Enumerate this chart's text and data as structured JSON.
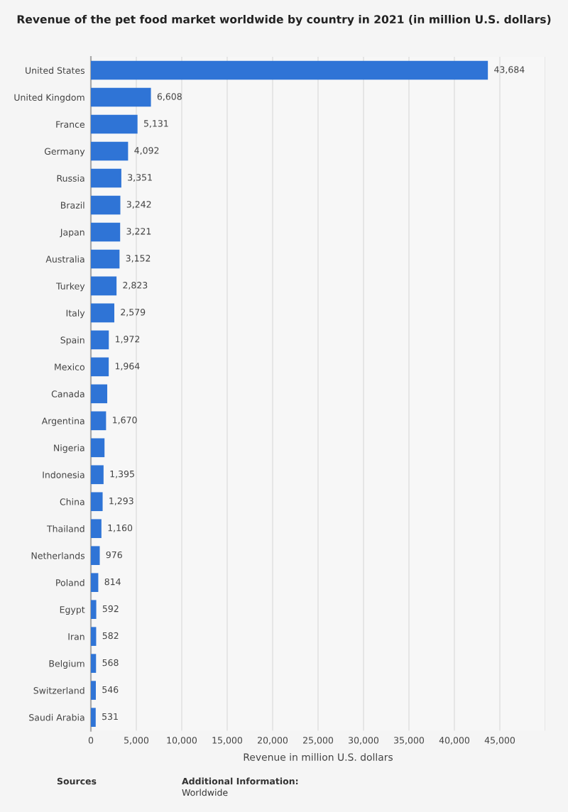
{
  "chart_data": {
    "type": "bar",
    "orientation": "horizontal",
    "title": "Revenue of the pet food market worldwide by country in 2021 (in million U.S. dollars)",
    "xlabel": "Revenue in million U.S. dollars",
    "categories": [
      "United States",
      "United Kingdom",
      "France",
      "Germany",
      "Russia",
      "Brazil",
      "Japan",
      "Australia",
      "Turkey",
      "Italy",
      "Spain",
      "Mexico",
      "Canada",
      "Argentina",
      "Nigeria",
      "Indonesia",
      "China",
      "Thailand",
      "Netherlands",
      "Poland",
      "Egypt",
      "Iran",
      "Belgium",
      "Switzerland",
      "Saudi Arabia"
    ],
    "values": [
      43684,
      6608,
      5131,
      4092,
      3351,
      3242,
      3221,
      3152,
      2823,
      2579,
      1972,
      1964,
      1800,
      1670,
      1500,
      1395,
      1293,
      1160,
      976,
      814,
      592,
      582,
      568,
      546,
      531
    ],
    "value_labels": [
      "43,684",
      "6,608",
      "5,131",
      "4,092",
      "3,351",
      "3,242",
      "3,221",
      "3,152",
      "2,823",
      "2,579",
      "1,972",
      "1,964",
      null,
      "1,670",
      null,
      "1,395",
      "1,293",
      "1,160",
      "976",
      "814",
      "592",
      "582",
      "568",
      "546",
      "531"
    ],
    "color": "#2f74d6",
    "xlim": [
      0,
      50000
    ],
    "xticks": [
      0,
      {
        "value": 5000,
        "label": "5,000"
      },
      {
        "value": 10000,
        "label": "10,000"
      },
      {
        "value": 15000,
        "label": "15,000"
      },
      {
        "value": 20000,
        "label": "20,000"
      },
      {
        "value": 25000,
        "label": "25,000"
      },
      {
        "value": 30000,
        "label": "30,000"
      },
      {
        "value": 35000,
        "label": "35,000"
      },
      {
        "value": 40000,
        "label": "40,000"
      },
      {
        "value": 45000,
        "label": "45,000"
      },
      {
        "value": 50000,
        "label": null
      }
    ],
    "grid": "x",
    "annotations": [
      "Sources",
      "Additional Information:",
      "Worldwide"
    ]
  }
}
